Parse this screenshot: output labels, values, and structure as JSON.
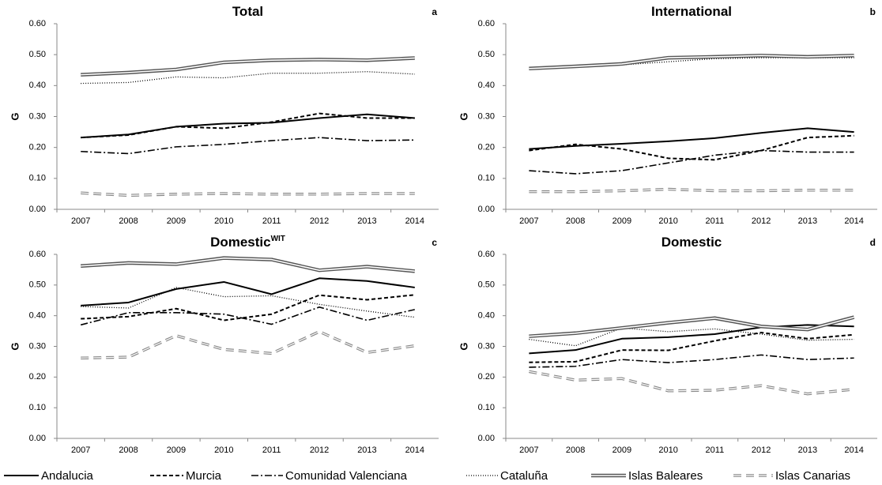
{
  "chart_data": [
    {
      "type": "line",
      "title": "Total",
      "label": "a",
      "ylabel": "G",
      "categories": [
        "2007",
        "2008",
        "2009",
        "2010",
        "2011",
        "2012",
        "2013",
        "2014"
      ],
      "ylim": [
        0,
        0.6
      ],
      "yticks": [
        {
          "value": 0,
          "label": "0.00"
        },
        {
          "value": 0.1,
          "label": "0.10"
        },
        {
          "value": 0.2,
          "label": "0.20"
        },
        {
          "value": 0.3,
          "label": "0.30"
        },
        {
          "value": 0.4,
          "label": "0.40"
        },
        {
          "value": 0.5,
          "label": "0.50"
        },
        {
          "value": 0.6,
          "label": "0.60"
        }
      ],
      "series": [
        {
          "values": [
            0.232,
            0.242,
            0.267,
            0.277,
            0.28,
            0.295,
            0.307,
            0.295
          ]
        },
        {
          "values": [
            0.232,
            0.24,
            0.267,
            0.262,
            0.282,
            0.31,
            0.295,
            0.295
          ]
        },
        {
          "values": [
            0.187,
            0.18,
            0.202,
            0.21,
            0.222,
            0.232,
            0.222,
            0.224
          ]
        },
        {
          "values": [
            0.407,
            0.41,
            0.428,
            0.425,
            0.44,
            0.44,
            0.445,
            0.437
          ]
        },
        {
          "values": [
            0.435,
            0.442,
            0.452,
            0.475,
            0.482,
            0.484,
            0.482,
            0.489
          ]
        },
        {
          "values": [
            0.053,
            0.045,
            0.049,
            0.051,
            0.049,
            0.049,
            0.051,
            0.051
          ]
        }
      ]
    },
    {
      "type": "line",
      "title": "International",
      "label": "b",
      "ylabel": "G",
      "categories": [
        "2007",
        "2008",
        "2009",
        "2010",
        "2011",
        "2012",
        "2013",
        "2014"
      ],
      "ylim": [
        0,
        0.6
      ],
      "yticks": [
        {
          "value": 0,
          "label": "0.00"
        },
        {
          "value": 0.1,
          "label": "0.10"
        },
        {
          "value": 0.2,
          "label": "0.20"
        },
        {
          "value": 0.3,
          "label": "0.30"
        },
        {
          "value": 0.4,
          "label": "0.40"
        },
        {
          "value": 0.5,
          "label": "0.50"
        },
        {
          "value": 0.6,
          "label": "0.60"
        }
      ],
      "series": [
        {
          "values": [
            0.195,
            0.205,
            0.212,
            0.22,
            0.23,
            0.247,
            0.262,
            0.25
          ]
        },
        {
          "values": [
            0.19,
            0.21,
            0.195,
            0.165,
            0.16,
            0.19,
            0.232,
            0.238
          ]
        },
        {
          "values": [
            0.125,
            0.115,
            0.125,
            0.15,
            0.175,
            0.19,
            0.185,
            0.185
          ]
        },
        {
          "values": [
            0.453,
            0.46,
            0.467,
            0.477,
            0.487,
            0.49,
            0.49,
            0.49
          ]
        },
        {
          "values": [
            0.455,
            0.462,
            0.47,
            0.49,
            0.493,
            0.497,
            0.493,
            0.497
          ]
        },
        {
          "values": [
            0.057,
            0.057,
            0.06,
            0.065,
            0.06,
            0.06,
            0.062,
            0.062
          ]
        }
      ]
    },
    {
      "type": "line",
      "title": "Domestic",
      "title_sup": "WIT",
      "label": "c",
      "ylabel": "G",
      "categories": [
        "2007",
        "2008",
        "2009",
        "2010",
        "2011",
        "2012",
        "2013",
        "2014"
      ],
      "ylim": [
        0,
        0.6
      ],
      "yticks": [
        {
          "value": 0,
          "label": "0.00"
        },
        {
          "value": 0.1,
          "label": "0.10"
        },
        {
          "value": 0.2,
          "label": "0.20"
        },
        {
          "value": 0.3,
          "label": "0.30"
        },
        {
          "value": 0.4,
          "label": "0.40"
        },
        {
          "value": 0.5,
          "label": "0.50"
        },
        {
          "value": 0.6,
          "label": "0.60"
        }
      ],
      "series": [
        {
          "values": [
            0.433,
            0.443,
            0.487,
            0.51,
            0.47,
            0.522,
            0.513,
            0.492
          ]
        },
        {
          "values": [
            0.39,
            0.397,
            0.423,
            0.385,
            0.405,
            0.467,
            0.452,
            0.468
          ]
        },
        {
          "values": [
            0.37,
            0.41,
            0.41,
            0.405,
            0.372,
            0.428,
            0.385,
            0.42
          ]
        },
        {
          "values": [
            0.43,
            0.425,
            0.492,
            0.462,
            0.465,
            0.437,
            0.415,
            0.395
          ]
        },
        {
          "values": [
            0.562,
            0.572,
            0.568,
            0.588,
            0.583,
            0.548,
            0.56,
            0.545
          ]
        },
        {
          "values": [
            0.262,
            0.265,
            0.335,
            0.29,
            0.277,
            0.348,
            0.28,
            0.302
          ]
        }
      ]
    },
    {
      "type": "line",
      "title": "Domestic",
      "label": "d",
      "ylabel": "G",
      "categories": [
        "2007",
        "2008",
        "2009",
        "2010",
        "2011",
        "2012",
        "2013",
        "2014"
      ],
      "ylim": [
        0,
        0.6
      ],
      "yticks": [
        {
          "value": 0,
          "label": "0.00"
        },
        {
          "value": 0.1,
          "label": "0.10"
        },
        {
          "value": 0.2,
          "label": "0.20"
        },
        {
          "value": 0.3,
          "label": "0.30"
        },
        {
          "value": 0.4,
          "label": "0.40"
        },
        {
          "value": 0.5,
          "label": "0.50"
        },
        {
          "value": 0.6,
          "label": "0.60"
        }
      ],
      "series": [
        {
          "values": [
            0.277,
            0.288,
            0.325,
            0.33,
            0.34,
            0.362,
            0.37,
            0.365
          ]
        },
        {
          "values": [
            0.248,
            0.25,
            0.288,
            0.287,
            0.318,
            0.345,
            0.325,
            0.338
          ]
        },
        {
          "values": [
            0.232,
            0.235,
            0.257,
            0.247,
            0.257,
            0.272,
            0.257,
            0.262
          ]
        },
        {
          "values": [
            0.323,
            0.302,
            0.36,
            0.348,
            0.357,
            0.34,
            0.32,
            0.323
          ]
        },
        {
          "values": [
            0.333,
            0.343,
            0.36,
            0.377,
            0.392,
            0.365,
            0.355,
            0.395
          ]
        },
        {
          "values": [
            0.218,
            0.19,
            0.195,
            0.155,
            0.157,
            0.172,
            0.145,
            0.16
          ]
        }
      ]
    }
  ],
  "legend": [
    {
      "name": "Andalucia",
      "color": "#000000",
      "dash": "solid"
    },
    {
      "name": "Murcia",
      "color": "#000000",
      "dash": "dashed"
    },
    {
      "name": "Comunidad Valenciana",
      "color": "#000000",
      "dash": "dashdot"
    },
    {
      "name": "Cataluña",
      "color": "#000000",
      "dash": "dotted"
    },
    {
      "name": "Islas Baleares",
      "color": "#555555",
      "dash": "double"
    },
    {
      "name": "Islas Canarias",
      "color": "#888888",
      "dash": "longdash"
    }
  ]
}
